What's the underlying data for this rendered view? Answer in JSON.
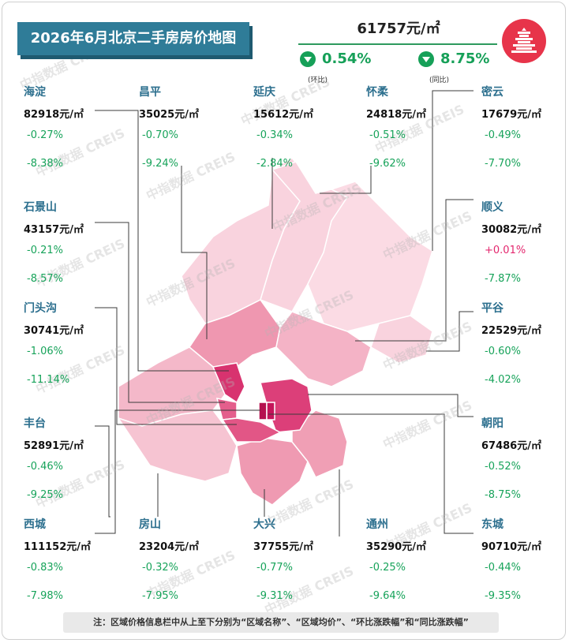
{
  "title": "2026年6月北京二手房房价地图",
  "overall": {
    "avg_price": "61757元/㎡",
    "mom": "0.54%",
    "yoy": "8.75%",
    "mom_label": "(环比)",
    "yoy_label": "(同比)"
  },
  "watermark": "中指数据 CREIS",
  "districts": {
    "haidian": {
      "name": "海淀",
      "price": "82918元/㎡",
      "mom": "-0.27%",
      "yoy": "-8.38%"
    },
    "changping": {
      "name": "昌平",
      "price": "35025元/㎡",
      "mom": "-0.70%",
      "yoy": "-9.24%"
    },
    "yanqing": {
      "name": "延庆",
      "price": "15612元/㎡",
      "mom": "-0.34%",
      "yoy": "-2.84%"
    },
    "huairou": {
      "name": "怀柔",
      "price": "24818元/㎡",
      "mom": "-0.51%",
      "yoy": "-9.62%"
    },
    "miyun": {
      "name": "密云",
      "price": "17679元/㎡",
      "mom": "-0.49%",
      "yoy": "-7.70%"
    },
    "shijingshan": {
      "name": "石景山",
      "price": "43157元/㎡",
      "mom": "-0.21%",
      "yoy": "-8.57%"
    },
    "shunyi": {
      "name": "顺义",
      "price": "30082元/㎡",
      "mom": "+0.01%",
      "yoy": "-7.87%"
    },
    "mentougou": {
      "name": "门头沟",
      "price": "30741元/㎡",
      "mom": "-1.06%",
      "yoy": "-11.14%"
    },
    "pinggu": {
      "name": "平谷",
      "price": "22529元/㎡",
      "mom": "-0.60%",
      "yoy": "-4.02%"
    },
    "fengtai": {
      "name": "丰台",
      "price": "52891元/㎡",
      "mom": "-0.46%",
      "yoy": "-9.25%"
    },
    "chaoyang": {
      "name": "朝阳",
      "price": "67486元/㎡",
      "mom": "-0.52%",
      "yoy": "-8.75%"
    },
    "xicheng": {
      "name": "西城",
      "price": "111152元/㎡",
      "mom": "-0.83%",
      "yoy": "-7.98%"
    },
    "fangshan": {
      "name": "房山",
      "price": "23204元/㎡",
      "mom": "-0.32%",
      "yoy": "-7.95%"
    },
    "daxing": {
      "name": "大兴",
      "price": "37755元/㎡",
      "mom": "-0.77%",
      "yoy": "-9.31%"
    },
    "tongzhou": {
      "name": "通州",
      "price": "35290元/㎡",
      "mom": "-0.25%",
      "yoy": "-9.64%"
    },
    "dongcheng": {
      "name": "东城",
      "price": "90710元/㎡",
      "mom": "-0.44%",
      "yoy": "-9.35%"
    }
  },
  "colors": {
    "title_bg": "#2f7c98",
    "down": "#17a35a",
    "up": "#e4276e",
    "district_name": "#2c6f8e",
    "map_light": "#f7cfdb",
    "map_mid": "#ef9ab2",
    "map_dark": "#dd3f78",
    "map_core": "#c4145a"
  },
  "note": "注：区域价格信息栏中从上至下分别为“区域名称”、“区域均价”、“环比涨跌幅”和“同比涨跌幅”"
}
